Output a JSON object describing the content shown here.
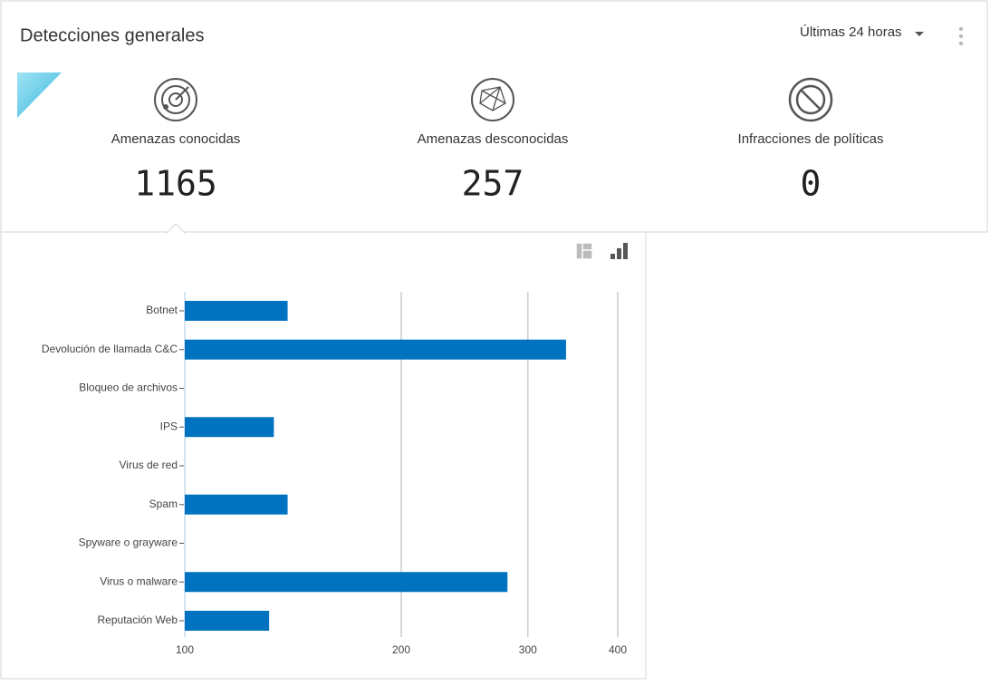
{
  "header": {
    "title": "Detecciones generales",
    "range": "Últimas 24 horas"
  },
  "stats": [
    {
      "label": "Amenazas conocidas",
      "value": 1165
    },
    {
      "label": "Amenazas desconocidas",
      "value": 257
    },
    {
      "label": "Infracciones de políticas",
      "value": 0
    }
  ],
  "chart_data": {
    "type": "bar",
    "orientation": "horizontal",
    "categories": [
      "Botnet",
      "Devolución de llamada C&C",
      "Bloqueo de archivos",
      "IPS",
      "Virus de red",
      "Spam",
      "Spyware o grayware",
      "Virus o malware",
      "Reputación Web"
    ],
    "values": [
      139,
      339,
      null,
      133,
      null,
      139,
      null,
      281,
      131
    ],
    "color": "#0073c0",
    "xlim": [
      100,
      400
    ],
    "xticks": [
      100,
      200,
      300,
      400
    ],
    "xscale": "log",
    "grid": true
  }
}
